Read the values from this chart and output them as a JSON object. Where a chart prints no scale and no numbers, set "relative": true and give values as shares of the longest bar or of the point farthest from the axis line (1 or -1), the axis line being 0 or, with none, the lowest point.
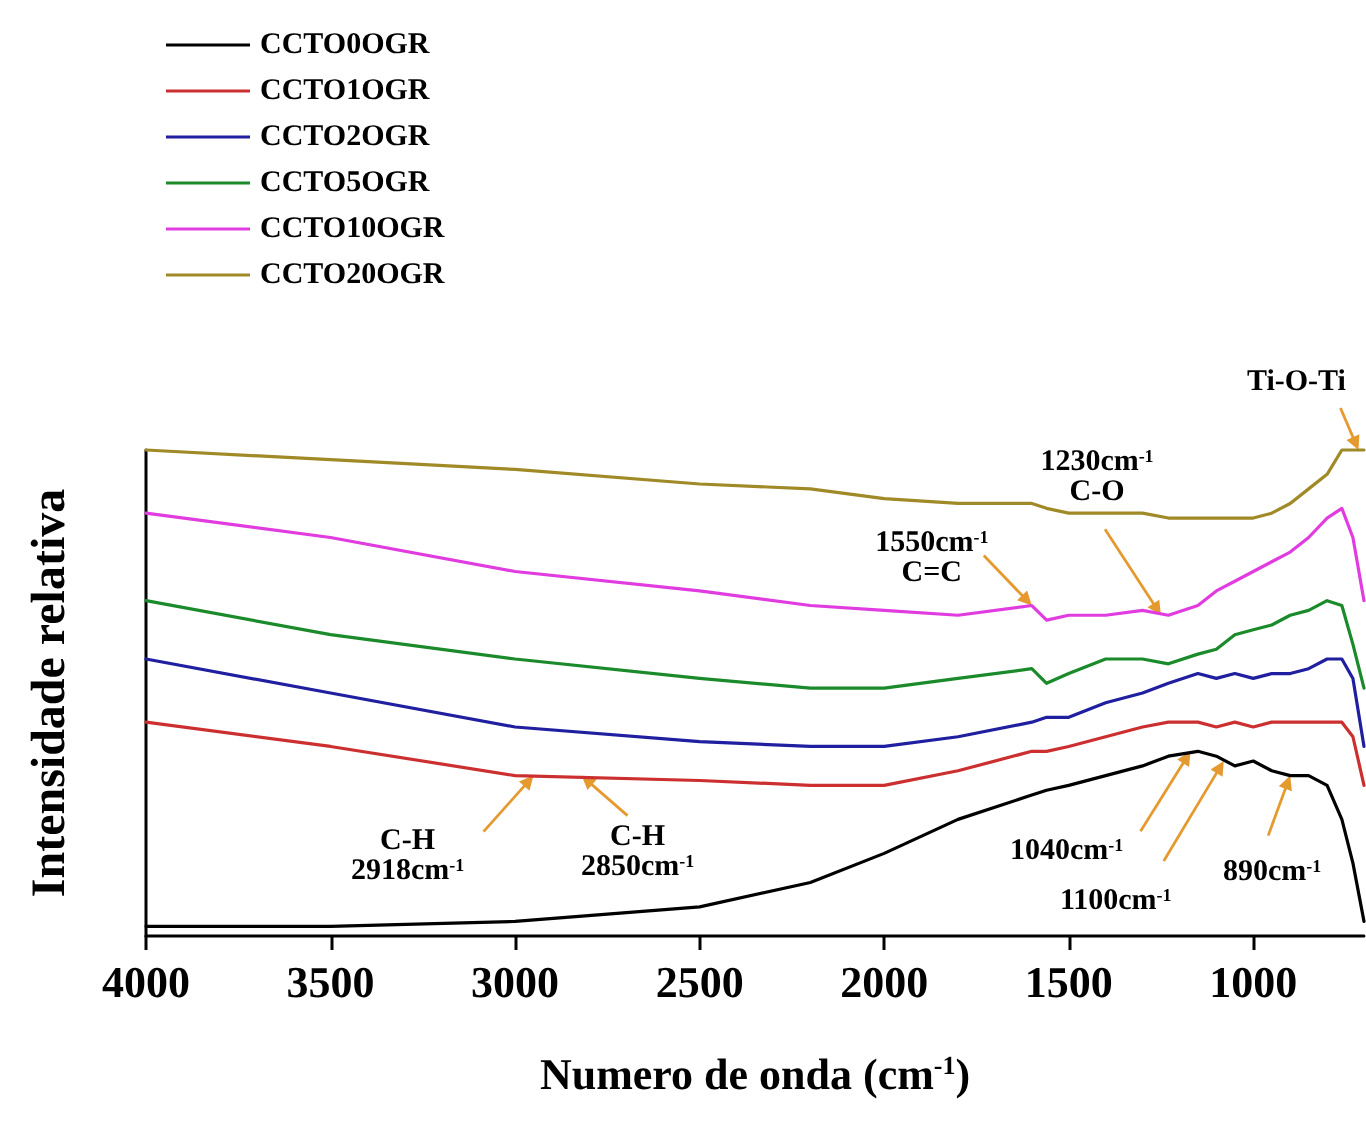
{
  "chart_data": {
    "type": "line",
    "relative": true,
    "xlabel": "Numero de onda (cm$^{-1}$)",
    "ylabel": "Intensidade relativa",
    "xlim": [
      4000,
      700
    ],
    "xticks": [
      4000,
      3500,
      3000,
      2500,
      2000,
      1500,
      1000
    ],
    "legend": "top left",
    "grid": false,
    "marker": "none",
    "line_style": "solid",
    "x": [
      4000,
      3500,
      3000,
      2500,
      2200,
      2000,
      1800,
      1600,
      1560,
      1500,
      1400,
      1300,
      1230,
      1150,
      1100,
      1050,
      1000,
      950,
      900,
      850,
      800,
      760,
      730,
      700
    ],
    "series": [
      {
        "name": "CCTO0OGR",
        "color": "#000000",
        "values": [
          0.02,
          0.02,
          0.03,
          0.06,
          0.11,
          0.17,
          0.24,
          0.29,
          0.3,
          0.31,
          0.33,
          0.35,
          0.37,
          0.38,
          0.37,
          0.35,
          0.36,
          0.34,
          0.33,
          0.33,
          0.31,
          0.24,
          0.15,
          0.03
        ]
      },
      {
        "name": "CCTO1OGR",
        "color": "#cc2f2f",
        "values": [
          0.44,
          0.39,
          0.33,
          0.32,
          0.31,
          0.31,
          0.34,
          0.38,
          0.38,
          0.39,
          0.41,
          0.43,
          0.44,
          0.44,
          0.43,
          0.44,
          0.43,
          0.44,
          0.44,
          0.44,
          0.44,
          0.44,
          0.41,
          0.31
        ]
      },
      {
        "name": "CCTO2OGR",
        "color": "#1f1fa0",
        "values": [
          0.57,
          0.5,
          0.43,
          0.4,
          0.39,
          0.39,
          0.41,
          0.44,
          0.45,
          0.45,
          0.48,
          0.5,
          0.52,
          0.54,
          0.53,
          0.54,
          0.53,
          0.54,
          0.54,
          0.55,
          0.57,
          0.57,
          0.53,
          0.39
        ]
      },
      {
        "name": "CCTO5OGR",
        "color": "#1a8a2a",
        "values": [
          0.69,
          0.62,
          0.57,
          0.53,
          0.51,
          0.51,
          0.53,
          0.55,
          0.52,
          0.54,
          0.57,
          0.57,
          0.56,
          0.58,
          0.59,
          0.62,
          0.63,
          0.64,
          0.66,
          0.67,
          0.69,
          0.68,
          0.6,
          0.51
        ]
      },
      {
        "name": "CCTO10OGR",
        "color": "#e03ce0",
        "values": [
          0.87,
          0.82,
          0.75,
          0.71,
          0.68,
          0.67,
          0.66,
          0.68,
          0.65,
          0.66,
          0.66,
          0.67,
          0.66,
          0.68,
          0.71,
          0.73,
          0.75,
          0.77,
          0.79,
          0.82,
          0.86,
          0.88,
          0.82,
          0.69
        ]
      },
      {
        "name": "CCTO20OGR",
        "color": "#a08a28",
        "values": [
          1.0,
          0.98,
          0.96,
          0.93,
          0.92,
          0.9,
          0.89,
          0.89,
          0.88,
          0.87,
          0.87,
          0.87,
          0.86,
          0.86,
          0.86,
          0.86,
          0.86,
          0.87,
          0.89,
          0.92,
          0.95,
          1.0,
          1.0,
          1.0
        ]
      }
    ],
    "annotations": [
      {
        "text": "Ti-O-Ti",
        "x": 715,
        "y": 1.0
      },
      {
        "text": "1230cm$^{-1}$\nC-O",
        "x": 1250,
        "y": 0.66
      },
      {
        "text": "1550cm$^{-1}$\nC=C",
        "x": 1600,
        "y": 0.68
      },
      {
        "text": "C-H\n2918cm$^{-1}$",
        "x": 2950,
        "y": 0.33
      },
      {
        "text": "C-H\n2850cm$^{-1}$",
        "x": 2820,
        "y": 0.33
      },
      {
        "text": "1040cm$^{-1}$",
        "x": 1170,
        "y": 0.38
      },
      {
        "text": "1100cm$^{-1}$",
        "x": 1080,
        "y": 0.36
      },
      {
        "text": "890cm$^{-1}$",
        "x": 900,
        "y": 0.33
      }
    ]
  }
}
